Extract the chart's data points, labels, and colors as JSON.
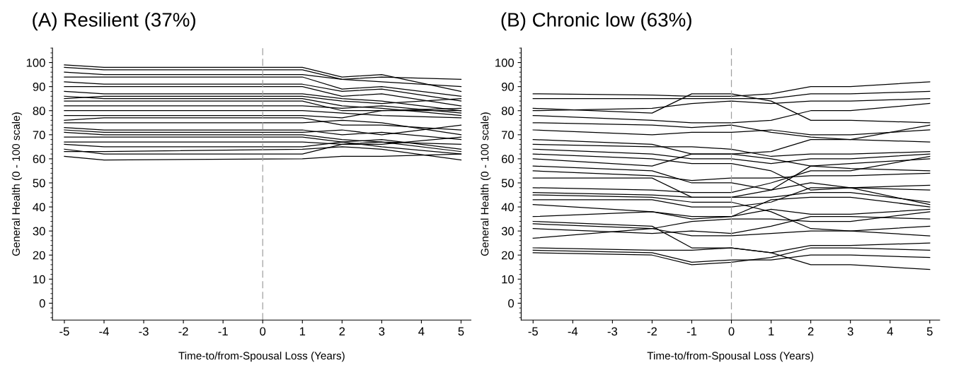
{
  "chart_data": [
    {
      "type": "line",
      "title": "(A) Resilient (37%)",
      "xlabel": "Time-to/from-Spousal Loss (Years)",
      "ylabel": "General Health (0 - 100 scale)",
      "x": [
        -5,
        -4,
        1,
        2,
        3,
        5
      ],
      "xlim": [
        -5.3,
        5.25
      ],
      "xticks": [
        -5,
        -4,
        -3,
        -2,
        -1,
        0,
        1,
        2,
        3,
        4,
        5
      ],
      "ylim": [
        -7,
        106
      ],
      "yticks": [
        0,
        10,
        20,
        30,
        40,
        50,
        60,
        70,
        80,
        90,
        100
      ],
      "grid": false,
      "marker": "none",
      "line_style": "solid",
      "ref_lines": [
        {
          "axis": "x",
          "value": 0,
          "color": "#a0a0a0",
          "line_style": "dashed"
        }
      ],
      "series": [
        {
          "color": "#000000",
          "values": [
            99,
            98,
            98,
            94,
            95,
            88
          ]
        },
        {
          "color": "#000000",
          "values": [
            98,
            97,
            97,
            93,
            94,
            93
          ]
        },
        {
          "color": "#000000",
          "values": [
            96,
            95,
            95,
            93,
            92,
            90
          ]
        },
        {
          "color": "#000000",
          "values": [
            94,
            94,
            94,
            89,
            90,
            86
          ]
        },
        {
          "color": "#000000",
          "values": [
            92,
            91,
            91,
            88,
            89,
            84
          ]
        },
        {
          "color": "#000000",
          "values": [
            90,
            90,
            90,
            86,
            87,
            82
          ]
        },
        {
          "color": "#000000",
          "values": [
            88,
            87,
            87,
            85,
            84,
            80
          ]
        },
        {
          "color": "#000000",
          "values": [
            86,
            85,
            85,
            82,
            81,
            78
          ]
        },
        {
          "color": "#000000",
          "values": [
            85,
            86,
            86,
            84,
            83,
            85
          ]
        },
        {
          "color": "#000000",
          "values": [
            84,
            84,
            84,
            80,
            80,
            80
          ]
        },
        {
          "color": "#000000",
          "values": [
            82,
            82,
            82,
            81,
            82,
            79
          ]
        },
        {
          "color": "#000000",
          "values": [
            80,
            80,
            80,
            79,
            78,
            77
          ]
        },
        {
          "color": "#000000",
          "values": [
            78,
            78,
            78,
            77,
            80,
            81
          ]
        },
        {
          "color": "#000000",
          "values": [
            76,
            77,
            77,
            74,
            74,
            72
          ]
        },
        {
          "color": "#000000",
          "values": [
            75,
            75,
            75,
            76,
            75,
            70
          ]
        },
        {
          "color": "#000000",
          "values": [
            73,
            72,
            72,
            70,
            71,
            68
          ]
        },
        {
          "color": "#000000",
          "values": [
            72,
            71,
            71,
            72,
            70,
            74
          ]
        },
        {
          "color": "#000000",
          "values": [
            71,
            70,
            70,
            68,
            67,
            66
          ]
        },
        {
          "color": "#000000",
          "values": [
            69,
            69,
            69,
            67,
            68,
            64
          ]
        },
        {
          "color": "#000000",
          "values": [
            67,
            67,
            67,
            66,
            66,
            69
          ]
        },
        {
          "color": "#000000",
          "values": [
            66,
            65,
            65,
            67,
            65,
            62
          ]
        },
        {
          "color": "#000000",
          "values": [
            64,
            62,
            62,
            66,
            67,
            63
          ]
        },
        {
          "color": "#000000",
          "values": [
            63,
            63,
            64,
            65,
            64,
            59.5
          ]
        },
        {
          "color": "#000000",
          "values": [
            61,
            59.5,
            60,
            61,
            61,
            62
          ]
        }
      ]
    },
    {
      "type": "line",
      "title": "(B) Chronic low (63%)",
      "xlabel": "Time-to/from-Spousal Loss (Years)",
      "ylabel": "General Health (0 - 100 scale)",
      "x": [
        -5,
        -2,
        -1,
        0,
        1,
        2,
        3,
        5
      ],
      "xlim": [
        -5.3,
        5.25
      ],
      "xticks": [
        -5,
        -4,
        -3,
        -2,
        -1,
        0,
        1,
        2,
        3,
        4,
        5
      ],
      "ylim": [
        -7,
        106
      ],
      "yticks": [
        0,
        10,
        20,
        30,
        40,
        50,
        60,
        70,
        80,
        90,
        100
      ],
      "grid": false,
      "marker": "none",
      "line_style": "solid",
      "ref_lines": [
        {
          "axis": "x",
          "value": 0,
          "color": "#a0a0a0",
          "line_style": "dashed"
        }
      ],
      "series": [
        {
          "color": "#000000",
          "values": [
            87,
            86.5,
            86,
            86,
            87,
            90,
            90,
            92
          ]
        },
        {
          "color": "#000000",
          "values": [
            85,
            85,
            85,
            85,
            85,
            87,
            87,
            88
          ]
        },
        {
          "color": "#000000",
          "values": [
            81,
            79,
            87,
            87,
            84,
            76,
            76,
            75
          ]
        },
        {
          "color": "#000000",
          "values": [
            80,
            81,
            83,
            84,
            83,
            84,
            84,
            85
          ]
        },
        {
          "color": "#000000",
          "values": [
            78,
            76,
            75,
            75,
            76,
            80,
            80,
            83
          ]
        },
        {
          "color": "#000000",
          "values": [
            75,
            74,
            73,
            74,
            71,
            69,
            68,
            74
          ]
        },
        {
          "color": "#000000",
          "values": [
            72,
            70,
            71,
            71,
            72,
            70,
            70,
            72
          ]
        },
        {
          "color": "#000000",
          "values": [
            68,
            66,
            62,
            62,
            63,
            68,
            68,
            67
          ]
        },
        {
          "color": "#000000",
          "values": [
            66,
            65,
            65,
            64,
            61,
            62,
            62,
            63
          ]
        },
        {
          "color": "#000000",
          "values": [
            64,
            62,
            60,
            60,
            58,
            60,
            60,
            62
          ]
        },
        {
          "color": "#000000",
          "values": [
            62,
            60,
            58,
            58,
            55,
            47,
            48,
            49
          ]
        },
        {
          "color": "#000000",
          "values": [
            60,
            57,
            62,
            62,
            60,
            57,
            58,
            60
          ]
        },
        {
          "color": "#000000",
          "values": [
            57,
            55,
            50,
            50,
            47,
            57,
            56,
            55
          ]
        },
        {
          "color": "#000000",
          "values": [
            55,
            53,
            51,
            52,
            52,
            53,
            53,
            54
          ]
        },
        {
          "color": "#000000",
          "values": [
            52,
            52,
            44,
            44,
            44,
            46,
            46,
            42
          ]
        },
        {
          "color": "#000000",
          "values": [
            48,
            47,
            46,
            46,
            50,
            55,
            55,
            61
          ]
        },
        {
          "color": "#000000",
          "values": [
            46,
            45,
            44,
            44,
            47,
            50,
            48,
            41
          ]
        },
        {
          "color": "#000000",
          "values": [
            45,
            44,
            42,
            42,
            38,
            31,
            30,
            28
          ]
        },
        {
          "color": "#000000",
          "values": [
            43,
            43,
            40,
            40,
            42,
            48,
            48,
            47
          ]
        },
        {
          "color": "#000000",
          "values": [
            41,
            38,
            36,
            36,
            39,
            37,
            37,
            39
          ]
        },
        {
          "color": "#000000",
          "values": [
            36,
            38,
            35,
            36,
            43,
            44,
            44,
            40
          ]
        },
        {
          "color": "#000000",
          "values": [
            34,
            32,
            23,
            23,
            21,
            16,
            16,
            14
          ]
        },
        {
          "color": "#000000",
          "values": [
            33,
            31,
            28,
            28,
            29,
            30,
            30,
            32
          ]
        },
        {
          "color": "#000000",
          "values": [
            31,
            29,
            30,
            29,
            32,
            36,
            36,
            35
          ]
        },
        {
          "color": "#000000",
          "values": [
            27,
            31,
            34,
            35,
            35,
            34,
            34,
            38
          ]
        },
        {
          "color": "#000000",
          "values": [
            23,
            22,
            22,
            23,
            21,
            24,
            24,
            25
          ]
        },
        {
          "color": "#000000",
          "values": [
            22,
            21,
            17,
            18,
            18,
            20,
            20,
            19
          ]
        },
        {
          "color": "#000000",
          "values": [
            21,
            20,
            16,
            17,
            19,
            23,
            23,
            22
          ]
        }
      ]
    }
  ]
}
